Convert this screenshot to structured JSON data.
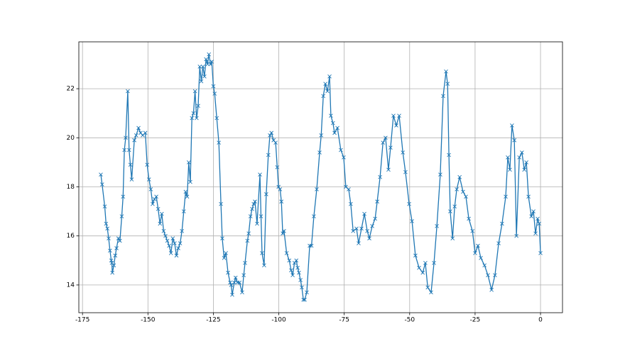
{
  "chart_data": {
    "type": "line",
    "marker": "x",
    "color": "#1f77b4",
    "grid": true,
    "x": [
      -168,
      -167.5,
      -166.5,
      -166,
      -165.5,
      -165,
      -164.5,
      -164,
      -163.8,
      -163.6,
      -163,
      -162.5,
      -162,
      -161.3,
      -160.7,
      -160,
      -159.5,
      -159,
      -158.5,
      -157.7,
      -157.2,
      -156.7,
      -156.2,
      -155.2,
      -154.5,
      -153.6,
      -152.8,
      -152,
      -151,
      -150.3,
      -149.6,
      -148.9,
      -148.2,
      -147.5,
      -146.8,
      -146.1,
      -145.4,
      -144.7,
      -144,
      -143.3,
      -142.6,
      -141.9,
      -141.2,
      -140.5,
      -139.8,
      -139.1,
      -138.4,
      -137.7,
      -137,
      -136.3,
      -135.6,
      -135,
      -134.4,
      -133.8,
      -133.2,
      -132.6,
      -132,
      -131.4,
      -130.8,
      -130.2,
      -129.6,
      -129,
      -128.4,
      -127.8,
      -127.2,
      -126.7,
      -126.1,
      -125.6,
      -125,
      -124.5,
      -123.7,
      -122.9,
      -122.1,
      -121.6,
      -120.9,
      -120.2,
      -119.4,
      -118.6,
      -118.2,
      -117.8,
      -117,
      -116.5,
      -115.8,
      -115,
      -114,
      -113.4,
      -112.9,
      -112,
      -111.5,
      -110.8,
      -110.2,
      -109.6,
      -109.1,
      -108.3,
      -107.2,
      -106.8,
      -106.4,
      -105.6,
      -104.8,
      -104,
      -103.4,
      -102.8,
      -102,
      -101.2,
      -100.6,
      -100.1,
      -99.5,
      -99,
      -98.5,
      -98,
      -97,
      -96,
      -95.3,
      -94.7,
      -94,
      -93.3,
      -92.8,
      -92.3,
      -91.7,
      -91.2,
      -90.6,
      -90.1,
      -89.3,
      -88.2,
      -87.5,
      -86.6,
      -85.5,
      -84.4,
      -83.8,
      -83,
      -82.2,
      -81.4,
      -80.6,
      -80.1,
      -79.3,
      -78.7,
      -77.6,
      -76.3,
      -75.2,
      -74.4,
      -73.3,
      -72.5,
      -71.6,
      -70.3,
      -69.5,
      -68.4,
      -67.3,
      -66.2,
      -65.4,
      -64.3,
      -63.2,
      -62.4,
      -61.3,
      -60.2,
      -59.2,
      -58.1,
      -57.3,
      -56.2,
      -55.1,
      -54,
      -52.6,
      -51.6,
      -50.2,
      -49.1,
      -47.8,
      -46.4,
      -45,
      -44,
      -43.1,
      -41.8,
      -40.7,
      -39.6,
      -38.3,
      -37.2,
      -36.1,
      -35.5,
      -35,
      -34.5,
      -33.6,
      -32.8,
      -32,
      -30.9,
      -29.6,
      -28.5,
      -27.4,
      -26,
      -25,
      -23.9,
      -22.8,
      -21.4,
      -20.1,
      -18.7,
      -17.4,
      -16,
      -14.7,
      -13.3,
      -12.5,
      -11.7,
      -10.9,
      -10,
      -9.2,
      -8.1,
      -7.1,
      -6.2,
      -5.4,
      -4.6,
      -3.5,
      -2.7,
      -1.9,
      -1.1,
      -0.5,
      0
    ],
    "values": [
      18.5,
      18.1,
      17.2,
      16.5,
      16.3,
      15.9,
      15.4,
      15.0,
      14.9,
      14.5,
      14.8,
      15.2,
      15.5,
      15.9,
      15.8,
      16.8,
      17.6,
      19.5,
      20.0,
      21.9,
      19.5,
      18.9,
      18.3,
      19.9,
      20.1,
      20.4,
      20.2,
      20.1,
      20.2,
      18.9,
      18.3,
      17.9,
      17.3,
      17.5,
      17.6,
      17.1,
      16.5,
      16.9,
      16.2,
      16.0,
      15.8,
      15.6,
      15.3,
      15.9,
      15.7,
      15.2,
      15.5,
      15.7,
      16.2,
      17.0,
      17.8,
      17.6,
      19.0,
      18.2,
      20.8,
      21.0,
      21.9,
      20.8,
      21.3,
      22.9,
      22.3,
      22.9,
      22.5,
      23.2,
      23.0,
      23.4,
      23.0,
      23.1,
      22.1,
      21.8,
      20.8,
      19.8,
      17.3,
      15.9,
      15.1,
      15.3,
      14.5,
      14.1,
      14.0,
      13.6,
      14.1,
      14.3,
      14.1,
      14.1,
      13.7,
      14.4,
      14.9,
      15.8,
      16.1,
      16.8,
      17.1,
      17.3,
      17.4,
      16.5,
      18.5,
      16.8,
      15.3,
      14.8,
      17.7,
      19.3,
      20.1,
      20.2,
      19.9,
      19.8,
      18.8,
      18.0,
      17.9,
      17.4,
      16.1,
      16.2,
      15.3,
      15.0,
      14.6,
      14.4,
      14.9,
      15.0,
      14.7,
      14.5,
      14.2,
      13.9,
      13.4,
      13.4,
      13.7,
      15.6,
      15.6,
      16.8,
      17.9,
      19.4,
      20.1,
      21.7,
      22.2,
      21.9,
      22.5,
      20.9,
      20.6,
      20.2,
      20.4,
      19.5,
      19.2,
      18.0,
      17.9,
      17.3,
      16.2,
      16.3,
      15.7,
      16.3,
      16.9,
      16.2,
      15.9,
      16.4,
      16.7,
      17.4,
      18.4,
      19.8,
      20.0,
      18.7,
      19.6,
      20.9,
      20.5,
      20.9,
      19.4,
      18.6,
      17.3,
      16.6,
      15.2,
      14.7,
      14.5,
      14.9,
      13.9,
      13.7,
      14.9,
      16.4,
      18.5,
      21.7,
      22.7,
      22.2,
      19.3,
      17.0,
      15.9,
      17.2,
      17.9,
      18.4,
      17.8,
      17.6,
      16.7,
      16.2,
      15.3,
      15.6,
      15.1,
      14.8,
      14.4,
      13.8,
      14.4,
      15.7,
      16.5,
      17.6,
      19.2,
      18.7,
      20.5,
      19.9,
      16.0,
      19.2,
      19.4,
      18.7,
      19.0,
      17.6,
      16.8,
      17.0,
      16.1,
      16.7,
      16.5,
      15.3
    ],
    "xlim": [
      -176.4,
      8.4
    ],
    "xticks": [
      -175,
      -150,
      -125,
      -100,
      -75,
      -50,
      -25,
      0
    ],
    "ylim": [
      12.87,
      23.91
    ],
    "yticks": [
      14,
      16,
      18,
      20,
      22
    ]
  }
}
